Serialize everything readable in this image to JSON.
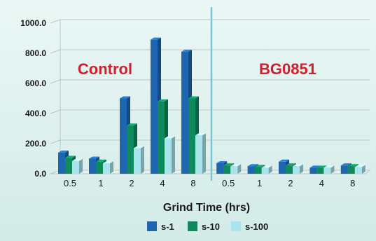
{
  "chart_data": {
    "type": "bar",
    "title": "",
    "xlabel": "Grind Time (hrs)",
    "ylabel": "",
    "ylim": [
      0,
      1000
    ],
    "y_ticks": [
      "0.0",
      "200.0",
      "400.0",
      "600.0",
      "800.0",
      "1000.0"
    ],
    "grid": true,
    "legend_position": "bottom",
    "groups": [
      {
        "label": "Control",
        "categories": [
          "0.5",
          "1",
          "2",
          "4",
          "8"
        ],
        "series": [
          {
            "name": "s-1",
            "values": [
              140,
              100,
              500,
              890,
              810
            ]
          },
          {
            "name": "s-10",
            "values": [
              105,
              80,
              320,
              480,
              500
            ]
          },
          {
            "name": "s-100",
            "values": [
              85,
              70,
              170,
              235,
              255
            ]
          }
        ]
      },
      {
        "label": "BG0851",
        "categories": [
          "0.5",
          "1",
          "2",
          "4",
          "8"
        ],
        "series": [
          {
            "name": "s-1",
            "values": [
              70,
              50,
              80,
              40,
              55
            ]
          },
          {
            "name": "s-10",
            "values": [
              55,
              45,
              55,
              40,
              50
            ]
          },
          {
            "name": "s-100",
            "values": [
              50,
              40,
              50,
              40,
              45
            ]
          }
        ]
      }
    ],
    "legend": [
      "s-1",
      "s-10",
      "s-100"
    ],
    "colors": {
      "s-1": "#1f66b0",
      "s-10": "#0e8a5c",
      "s-100": "#a9e4ec",
      "panel_label": "#d0202e",
      "divider": "#7fc3cf"
    }
  }
}
